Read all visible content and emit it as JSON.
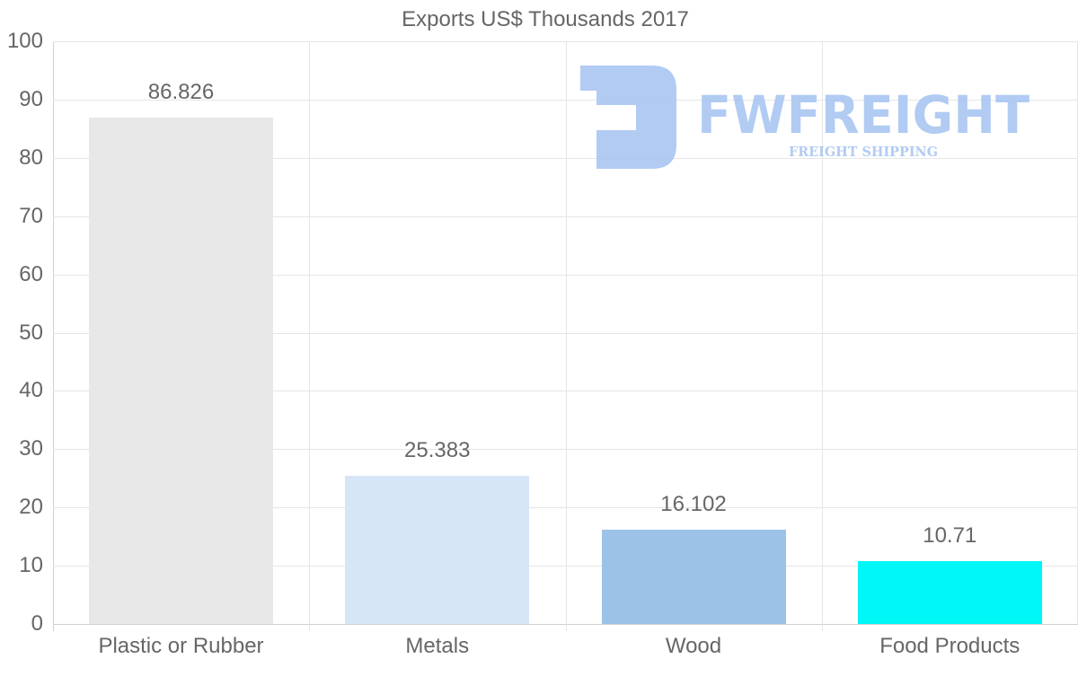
{
  "chart_data": {
    "type": "bar",
    "title": "Exports US$ Thousands 2017",
    "categories": [
      "Plastic or Rubber",
      "Metals",
      "Wood",
      "Food Products"
    ],
    "values": [
      86.826,
      25.383,
      16.102,
      10.71
    ],
    "value_labels": [
      "86.826",
      "25.383",
      "16.102",
      "10.71"
    ],
    "colors": [
      "#e8e8e8",
      "#d6e6f7",
      "#9cc3e7",
      "#00f7f7"
    ],
    "xlabel": "",
    "ylabel": "",
    "ylim": [
      0,
      100
    ],
    "yticks": [
      0,
      10,
      20,
      30,
      40,
      50,
      60,
      70,
      80,
      90,
      100
    ],
    "grid": true,
    "legend": "none"
  },
  "watermark": {
    "brand": "FWFREIGHT",
    "tagline": "FREIGHT SHIPPING",
    "color": "#a9c6f2"
  }
}
